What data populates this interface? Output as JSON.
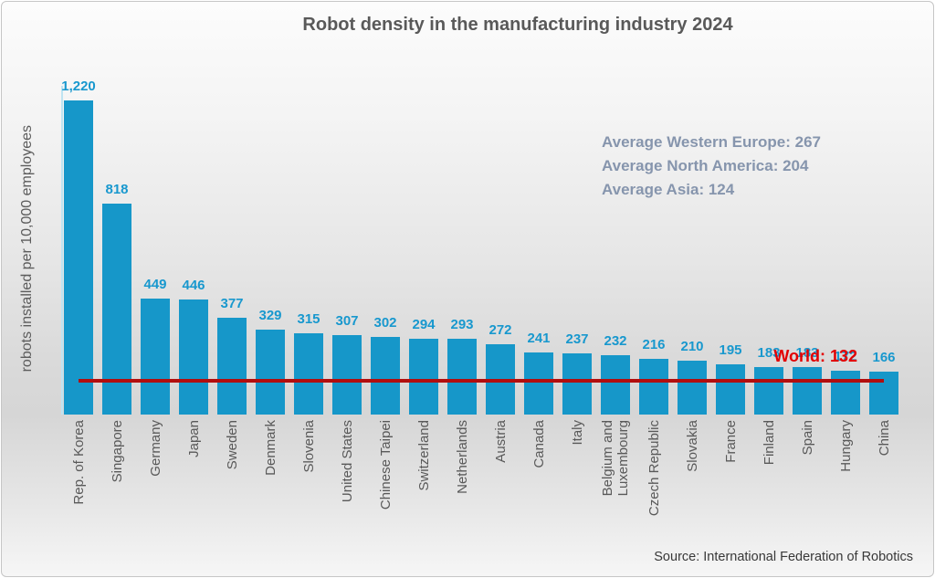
{
  "title": "Robot density in the manufacturing industry 2024",
  "source": "Source: International Federation of Robotics",
  "chart_data": {
    "type": "bar",
    "title": "Robot density in the manufacturing industry 2024",
    "xlabel": "",
    "ylabel": "robots installed per 10,000 employees",
    "categories": [
      "Rep. of Korea",
      "Singapore",
      "Germany",
      "Japan",
      "Sweden",
      "Denmark",
      "Slovenia",
      "United States",
      "Chinese Taipei",
      "Switzerland",
      "Netherlands",
      "Austria",
      "Canada",
      "Italy",
      "Belgium and\nLuxembourg",
      "Czech Republic",
      "Slovakia",
      "France",
      "Finland",
      "Spain",
      "Hungary",
      "China"
    ],
    "values": [
      1220,
      818,
      449,
      446,
      377,
      329,
      315,
      307,
      302,
      294,
      293,
      272,
      241,
      237,
      232,
      216,
      210,
      195,
      183,
      183,
      172,
      166
    ],
    "value_labels": [
      "1,220",
      "818",
      "449",
      "446",
      "377",
      "329",
      "315",
      "307",
      "302",
      "294",
      "293",
      "272",
      "241",
      "237",
      "232",
      "216",
      "210",
      "195",
      "183",
      "183",
      "172",
      "166"
    ],
    "annotations": [
      {
        "text": "Average Western Europe: 267",
        "value": 267
      },
      {
        "text": "Average North America: 204",
        "value": 204
      },
      {
        "text": "Average Asia: 124",
        "value": 124
      }
    ],
    "reference_line": {
      "label": "World: 132",
      "value": 132
    },
    "ylim": [
      0,
      1419
    ],
    "grid": false,
    "legend": false,
    "colors": {
      "bar": "#1697c9",
      "value_label": "#1898ce",
      "reference_line": "#b20e0e",
      "reference_label": "#e30000",
      "annotation_text": "#8695ad",
      "axis_text": "#595959",
      "title_text": "#595959"
    }
  }
}
